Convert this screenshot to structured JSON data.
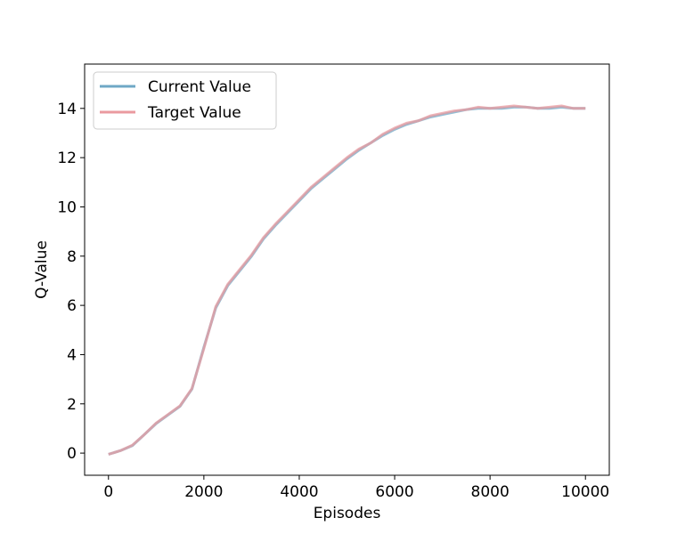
{
  "chart_data": {
    "type": "line",
    "title": "",
    "xlabel": "Episodes",
    "ylabel": "Q-Value",
    "xlim": [
      -500,
      10500
    ],
    "ylim": [
      -0.9,
      15.8
    ],
    "x_ticks": [
      0,
      2000,
      4000,
      6000,
      8000,
      10000
    ],
    "y_ticks": [
      0,
      2,
      4,
      6,
      8,
      10,
      12,
      14
    ],
    "grid": false,
    "legend": {
      "position": "upper-left",
      "entries": [
        "Current Value",
        "Target Value"
      ]
    },
    "colors": {
      "current": "#6fa8c6",
      "target": "#ea9a9f",
      "frame": "#000000"
    },
    "series": [
      {
        "name": "Current Value",
        "x": [
          0,
          250,
          500,
          750,
          1000,
          1250,
          1500,
          1750,
          2000,
          2250,
          2500,
          2750,
          3000,
          3250,
          3500,
          3750,
          4000,
          4250,
          4500,
          4750,
          5000,
          5250,
          5500,
          5750,
          6000,
          6250,
          6500,
          6750,
          7000,
          7250,
          7500,
          7750,
          8000,
          8250,
          8500,
          8750,
          9000,
          9250,
          9500,
          9750,
          10000
        ],
        "values": [
          -0.05,
          0.1,
          0.3,
          0.75,
          1.2,
          1.55,
          1.9,
          2.6,
          4.3,
          5.9,
          6.8,
          7.4,
          8.0,
          8.7,
          9.25,
          9.75,
          10.25,
          10.75,
          11.15,
          11.55,
          11.95,
          12.3,
          12.6,
          12.9,
          13.15,
          13.35,
          13.5,
          13.65,
          13.75,
          13.85,
          13.95,
          14.0,
          14.0,
          14.0,
          14.05,
          14.05,
          14.0,
          14.0,
          14.05,
          14.0,
          14.0
        ]
      },
      {
        "name": "Target Value",
        "x": [
          0,
          250,
          500,
          750,
          1000,
          1250,
          1500,
          1750,
          2000,
          2250,
          2500,
          2750,
          3000,
          3250,
          3500,
          3750,
          4000,
          4250,
          4500,
          4750,
          5000,
          5250,
          5500,
          5750,
          6000,
          6250,
          6500,
          6750,
          7000,
          7250,
          7500,
          7750,
          8000,
          8250,
          8500,
          8750,
          9000,
          9250,
          9500,
          9750,
          10000
        ],
        "values": [
          -0.05,
          0.1,
          0.32,
          0.75,
          1.22,
          1.57,
          1.92,
          2.62,
          4.25,
          5.95,
          6.85,
          7.45,
          8.05,
          8.75,
          9.3,
          9.8,
          10.3,
          10.8,
          11.2,
          11.6,
          12.0,
          12.35,
          12.6,
          12.95,
          13.2,
          13.4,
          13.5,
          13.7,
          13.8,
          13.9,
          13.95,
          14.05,
          14.0,
          14.05,
          14.1,
          14.05,
          14.0,
          14.05,
          14.1,
          14.0,
          14.0
        ]
      }
    ]
  }
}
